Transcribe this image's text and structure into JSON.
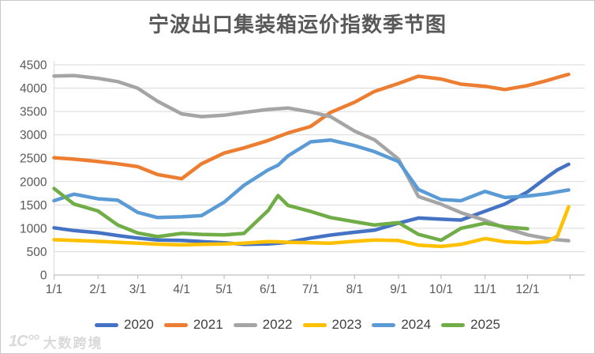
{
  "title": "宁波出口集装箱运价指数季节图",
  "watermark": {
    "logo": "1C°°",
    "text": "大数跨境"
  },
  "axis_color": "#bfbfbf",
  "grid_color": "#d9d9d9",
  "label_color": "#595959",
  "chart_data": {
    "type": "line",
    "title": "宁波出口集装箱运价指数季节图",
    "xlabel": "",
    "ylabel": "",
    "ylim": [
      0,
      4500
    ],
    "y_ticks": [
      0,
      500,
      1000,
      1500,
      2000,
      2500,
      3000,
      3500,
      4000,
      4500
    ],
    "x_tick_labels": [
      "1/1",
      "2/1",
      "3/1",
      "4/1",
      "5/1",
      "6/1",
      "7/1",
      "8/1",
      "9/1",
      "10/1",
      "11/1",
      "12/1"
    ],
    "grid": "horizontal",
    "legend_position": "bottom",
    "x_dates": [
      "1/1",
      "1/15",
      "2/1",
      "2/15",
      "3/1",
      "3/15",
      "4/1",
      "4/15",
      "5/1",
      "5/15",
      "6/1",
      "6/8",
      "6/15",
      "7/1",
      "7/15",
      "8/1",
      "8/15",
      "9/1",
      "9/15",
      "10/1",
      "10/15",
      "11/1",
      "11/15",
      "12/1",
      "12/15",
      "12/22",
      "12/30"
    ],
    "series": [
      {
        "name": "2020",
        "color": "#4472C4",
        "values": [
          1010,
          950,
          905,
          845,
          790,
          750,
          740,
          715,
          690,
          655,
          665,
          680,
          700,
          790,
          855,
          915,
          960,
          1110,
          1220,
          1195,
          1175,
          1365,
          1520,
          1780,
          2100,
          2250,
          2370
        ]
      },
      {
        "name": "2021",
        "color": "#ED7D31",
        "values": [
          2510,
          2480,
          2430,
          2380,
          2320,
          2150,
          2060,
          2380,
          2610,
          2720,
          2880,
          2960,
          3040,
          3180,
          3480,
          3700,
          3930,
          4100,
          4255,
          4195,
          4085,
          4040,
          3970,
          4055,
          4165,
          4230,
          4295
        ]
      },
      {
        "name": "2022",
        "color": "#A5A5A5",
        "values": [
          4260,
          4270,
          4210,
          4140,
          4000,
          3720,
          3450,
          3390,
          3420,
          3480,
          3545,
          3560,
          3575,
          3490,
          3390,
          3080,
          2895,
          2480,
          1680,
          1515,
          1335,
          1170,
          1010,
          860,
          780,
          755,
          735
        ]
      },
      {
        "name": "2023",
        "color": "#FFC000",
        "values": [
          755,
          740,
          720,
          700,
          680,
          660,
          645,
          655,
          665,
          680,
          715,
          710,
          700,
          690,
          680,
          720,
          748,
          738,
          640,
          610,
          655,
          780,
          710,
          690,
          715,
          830,
          1460
        ]
      },
      {
        "name": "2024",
        "color": "#5B9BD5",
        "values": [
          1590,
          1730,
          1630,
          1600,
          1340,
          1230,
          1245,
          1270,
          1560,
          1920,
          2250,
          2350,
          2550,
          2850,
          2890,
          2770,
          2640,
          2430,
          1830,
          1615,
          1590,
          1790,
          1660,
          1690,
          1740,
          1780,
          1820
        ]
      },
      {
        "name": "2025",
        "color": "#70AD47",
        "values": [
          1850,
          1520,
          1370,
          1070,
          900,
          820,
          890,
          870,
          860,
          890,
          1380,
          1700,
          1490,
          1360,
          1230,
          1140,
          1070,
          1120,
          870,
          745,
          1000,
          1110,
          1030,
          990,
          null,
          null,
          null
        ]
      }
    ]
  }
}
